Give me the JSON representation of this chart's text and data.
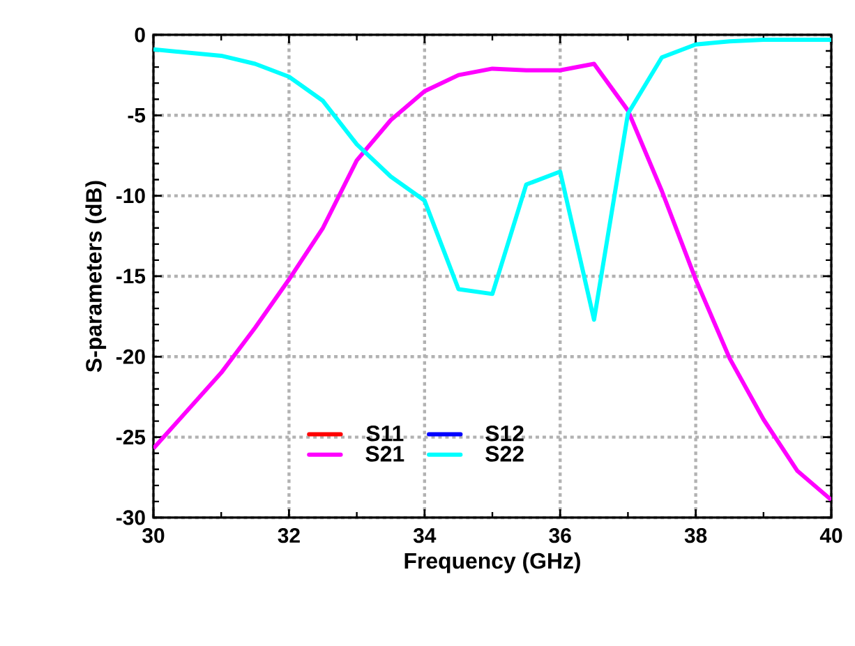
{
  "chart_data": {
    "type": "line",
    "xlabel": "Frequency (GHz)",
    "ylabel": "S-parameters (dB)",
    "x": [
      30,
      31,
      31.5,
      32,
      32.5,
      33,
      33.5,
      34,
      34.5,
      35,
      35.5,
      36,
      36.5,
      37,
      37.5,
      38,
      38.5,
      39,
      39.5,
      40
    ],
    "series": [
      {
        "name": "S11",
        "color": "#ff0000",
        "values": [
          null,
          null,
          null,
          null,
          null,
          null,
          null,
          null,
          null,
          null,
          null,
          null,
          null,
          null,
          null,
          null,
          null,
          null,
          null,
          null
        ]
      },
      {
        "name": "S12",
        "color": "#0000ff",
        "values": [
          null,
          null,
          null,
          null,
          null,
          null,
          null,
          null,
          null,
          null,
          null,
          null,
          null,
          null,
          null,
          null,
          null,
          null,
          null,
          null
        ]
      },
      {
        "name": "S21",
        "color": "#ff00ff",
        "values": [
          -25.7,
          -21.0,
          -18.2,
          -15.2,
          -12.0,
          -7.8,
          -5.3,
          -3.5,
          -2.5,
          -2.1,
          -2.2,
          -2.2,
          -1.8,
          -4.7,
          -9.7,
          -15.2,
          -20.1,
          -23.9,
          -27.1,
          -28.9
        ]
      },
      {
        "name": "S22",
        "color": "#00ffff",
        "values": [
          -0.9,
          -1.3,
          -1.8,
          -2.6,
          -4.1,
          -6.8,
          -8.8,
          -10.3,
          -15.8,
          -16.1,
          -9.3,
          -8.5,
          -17.7,
          -4.9,
          -1.4,
          -0.6,
          -0.4,
          -0.3,
          -0.3,
          -0.3
        ]
      }
    ],
    "xlim": [
      30,
      40
    ],
    "ylim": [
      -30,
      0
    ],
    "xticks": [
      30,
      32,
      34,
      36,
      38,
      40
    ],
    "yticks": [
      0,
      -5,
      -10,
      -15,
      -20,
      -25,
      -30
    ],
    "grid": true,
    "legend": "bottom",
    "line_style": "solid",
    "marker": "none"
  }
}
